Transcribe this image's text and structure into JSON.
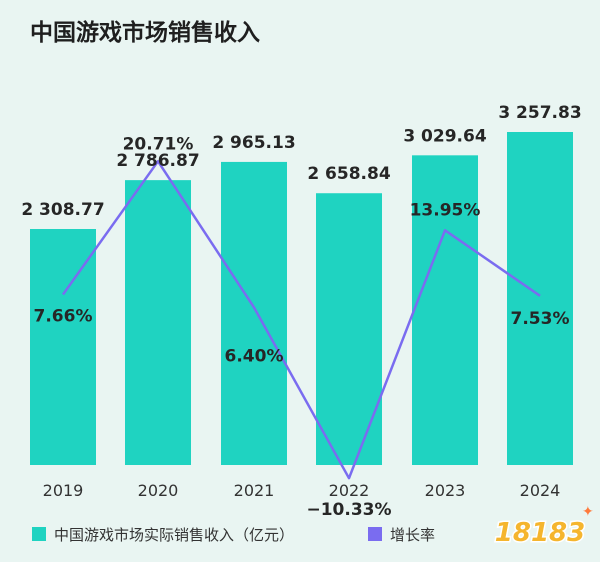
{
  "chart_data": {
    "type": "bar",
    "title": "中国游戏市场销售收入",
    "categories": [
      "2019",
      "2020",
      "2021",
      "2022",
      "2023",
      "2024"
    ],
    "series": [
      {
        "name": "中国游戏市场实际销售收入（亿元）",
        "type": "bar",
        "values": [
          2308.77,
          2786.87,
          2965.13,
          2658.84,
          3029.64,
          3257.83
        ],
        "labels": [
          "2 308.77",
          "2 786.87",
          "2 965.13",
          "2 658.84",
          "3 029.64",
          "3 257.83"
        ],
        "color": "#1fd3c1"
      },
      {
        "name": "增长率",
        "type": "line",
        "values": [
          7.66,
          20.71,
          6.4,
          -10.33,
          13.95,
          7.53
        ],
        "labels": [
          "7.66%",
          "20.71%",
          "6.40%",
          "−10.33%",
          "13.95%",
          "7.53%"
        ],
        "color": "#7a6cf0"
      }
    ],
    "legend_position": "bottom-left",
    "grid": false
  },
  "watermark": {
    "text": "18183"
  }
}
